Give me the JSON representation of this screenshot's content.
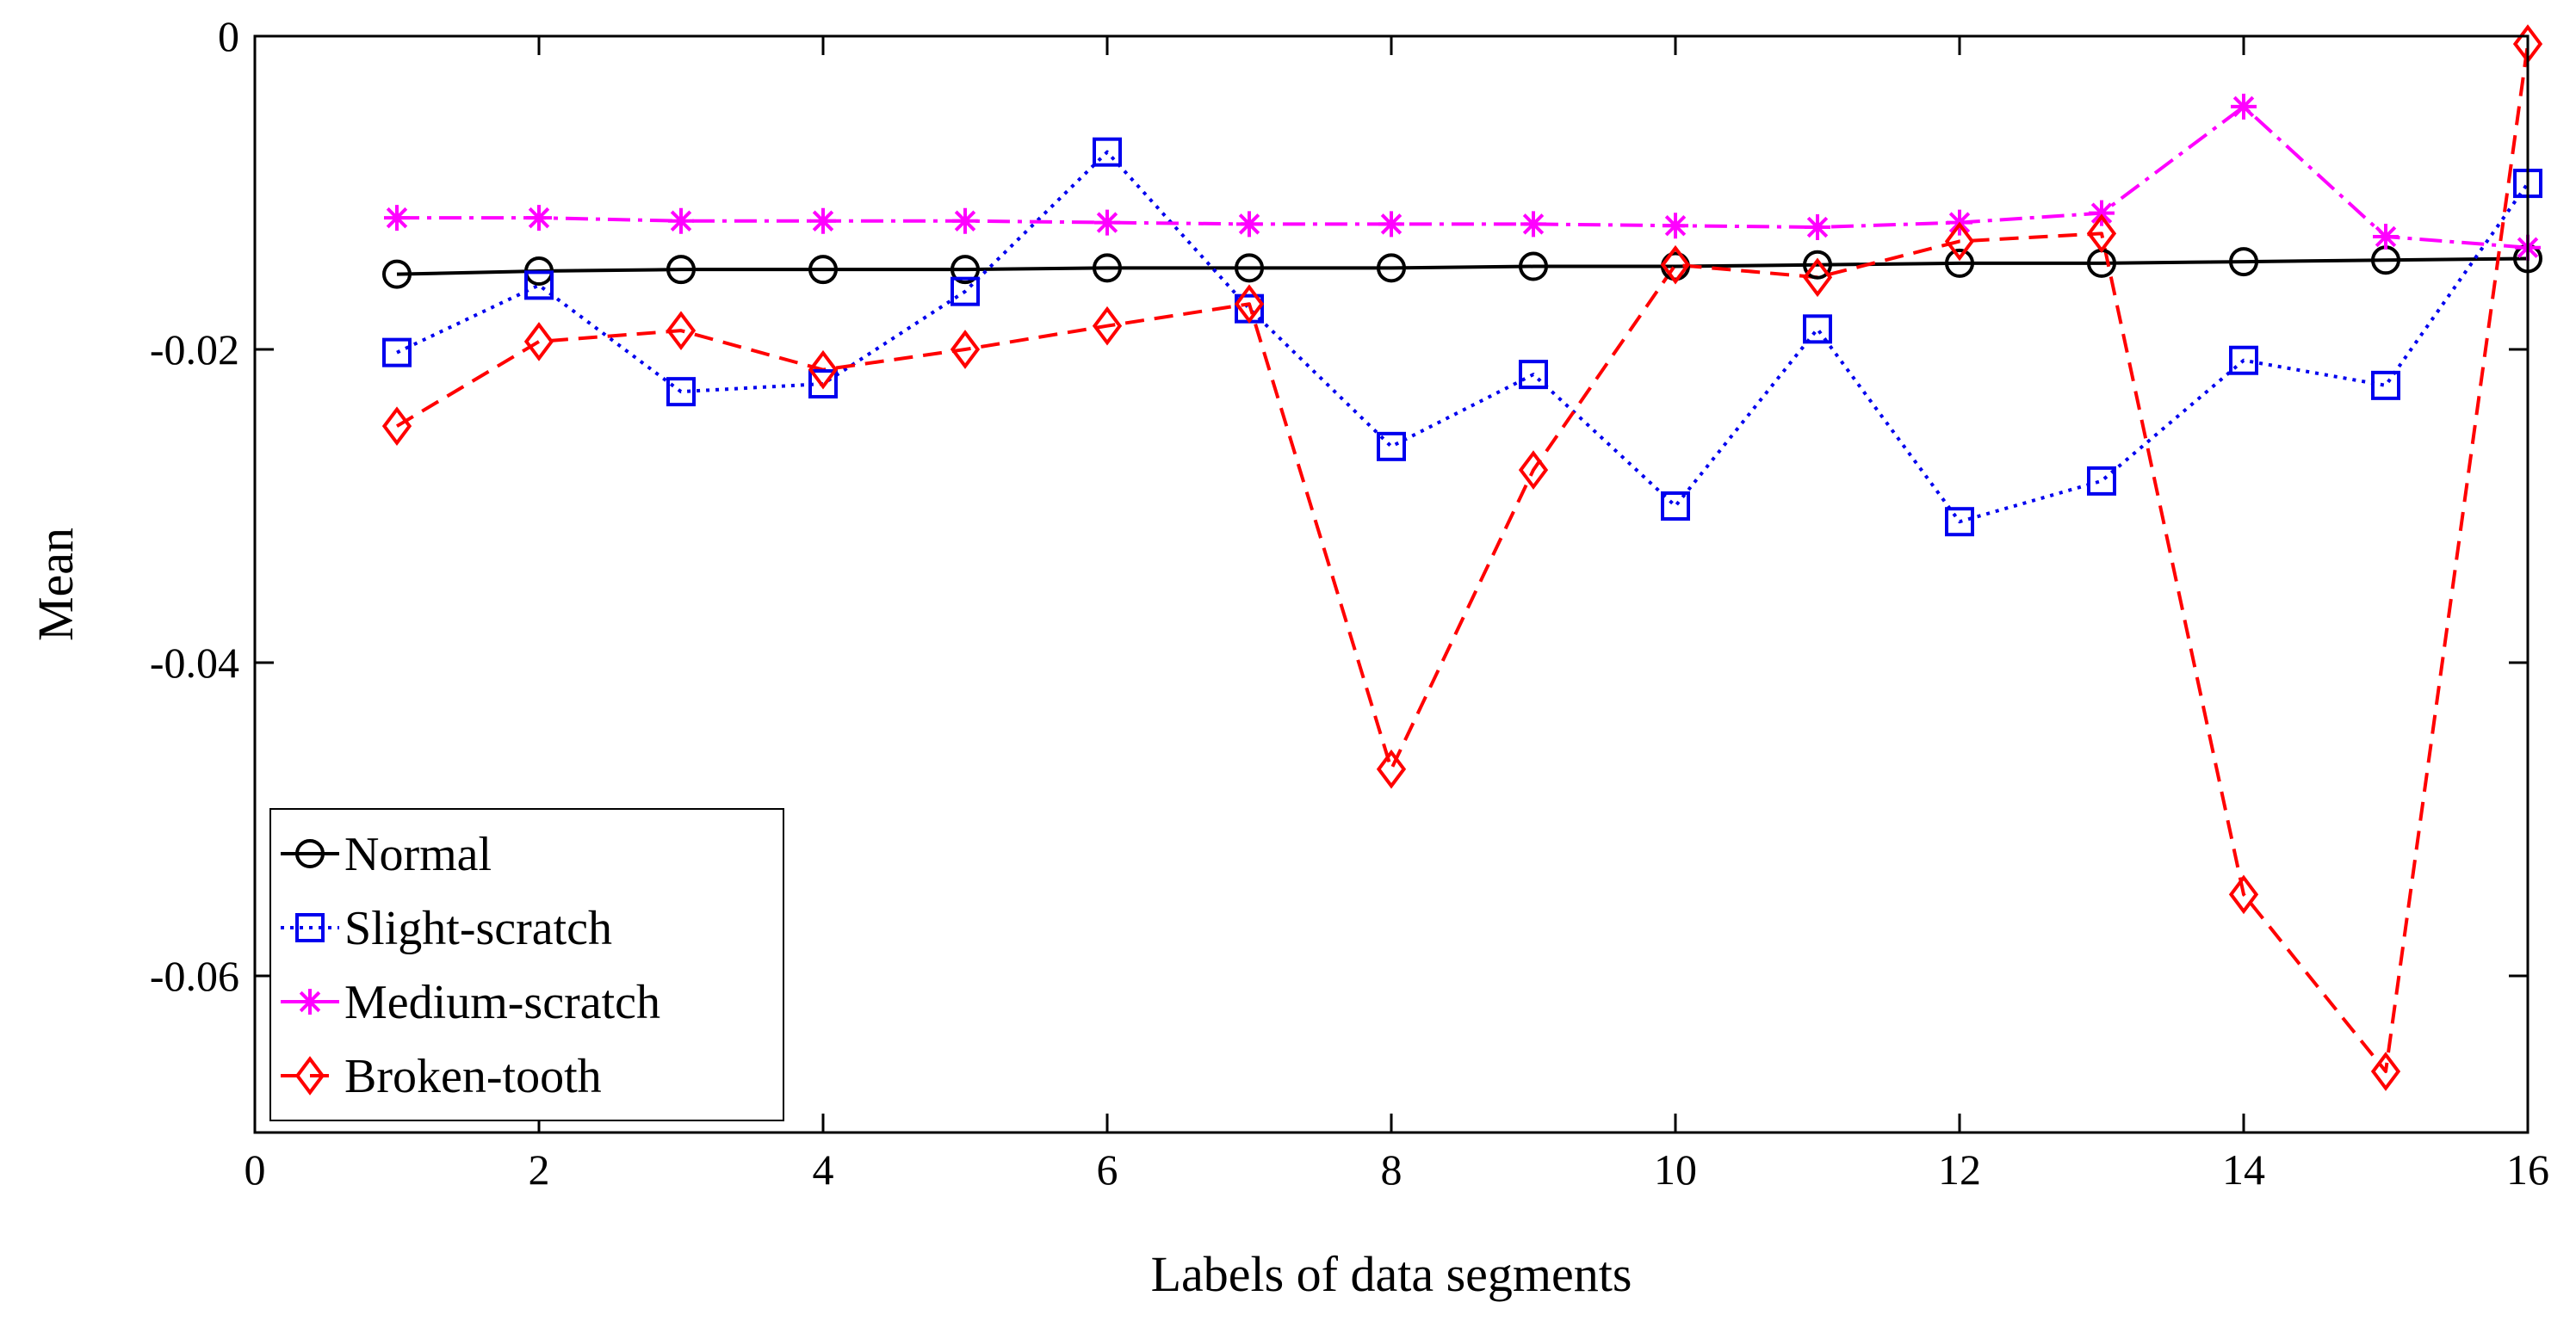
{
  "chart_data": {
    "type": "line",
    "title": "",
    "xlabel": "Labels of data segments",
    "ylabel": "Mean",
    "xlim": [
      0,
      16
    ],
    "ylim": [
      -0.07,
      0
    ],
    "xticks": [
      0,
      2,
      4,
      6,
      8,
      10,
      12,
      14,
      16
    ],
    "xtick_labels": [
      "0",
      "2",
      "4",
      "6",
      "8",
      "10",
      "12",
      "14",
      "16"
    ],
    "yticks": [
      0,
      -0.02,
      -0.04,
      -0.06
    ],
    "ytick_labels": [
      "0",
      "-0.02",
      "-0.04",
      "-0.06"
    ],
    "grid": false,
    "legend_position": "bottom-left",
    "x": [
      1,
      2,
      3,
      4,
      5,
      6,
      7,
      8,
      9,
      10,
      11,
      12,
      13,
      14,
      15,
      16
    ],
    "series": [
      {
        "name": "Normal",
        "color": "#000000",
        "line_style": "solid",
        "marker": "circle",
        "values": [
          -0.0152,
          -0.015,
          -0.0149,
          -0.0149,
          -0.0149,
          -0.0148,
          -0.0148,
          -0.0148,
          -0.0147,
          -0.0147,
          -0.0146,
          -0.0145,
          -0.0145,
          -0.0144,
          -0.0143,
          -0.0142
        ]
      },
      {
        "name": "Slight-scratch",
        "color": "#0000ee",
        "line_style": "dotted",
        "marker": "square",
        "values": [
          -0.0202,
          -0.0159,
          -0.0227,
          -0.0222,
          -0.0163,
          -0.0074,
          -0.0174,
          -0.0262,
          -0.0216,
          -0.03,
          -0.0187,
          -0.031,
          -0.0284,
          -0.0207,
          -0.0223,
          -0.0094
        ]
      },
      {
        "name": "Medium-scratch",
        "color": "#ff00ff",
        "line_style": "dashdot",
        "marker": "asterisk",
        "values": [
          -0.0116,
          -0.0116,
          -0.0118,
          -0.0118,
          -0.0118,
          -0.0119,
          -0.012,
          -0.012,
          -0.012,
          -0.0121,
          -0.0122,
          -0.0119,
          -0.0113,
          -0.0045,
          -0.0128,
          -0.0135
        ]
      },
      {
        "name": "Broken-tooth",
        "color": "#ff0000",
        "line_style": "dashed",
        "marker": "diamond",
        "values": [
          -0.0249,
          -0.0195,
          -0.0188,
          -0.0213,
          -0.02,
          -0.0185,
          -0.0171,
          -0.0468,
          -0.0277,
          -0.0146,
          -0.0154,
          -0.0131,
          -0.0126,
          -0.0548,
          -0.0661,
          -0.0005
        ]
      }
    ]
  }
}
